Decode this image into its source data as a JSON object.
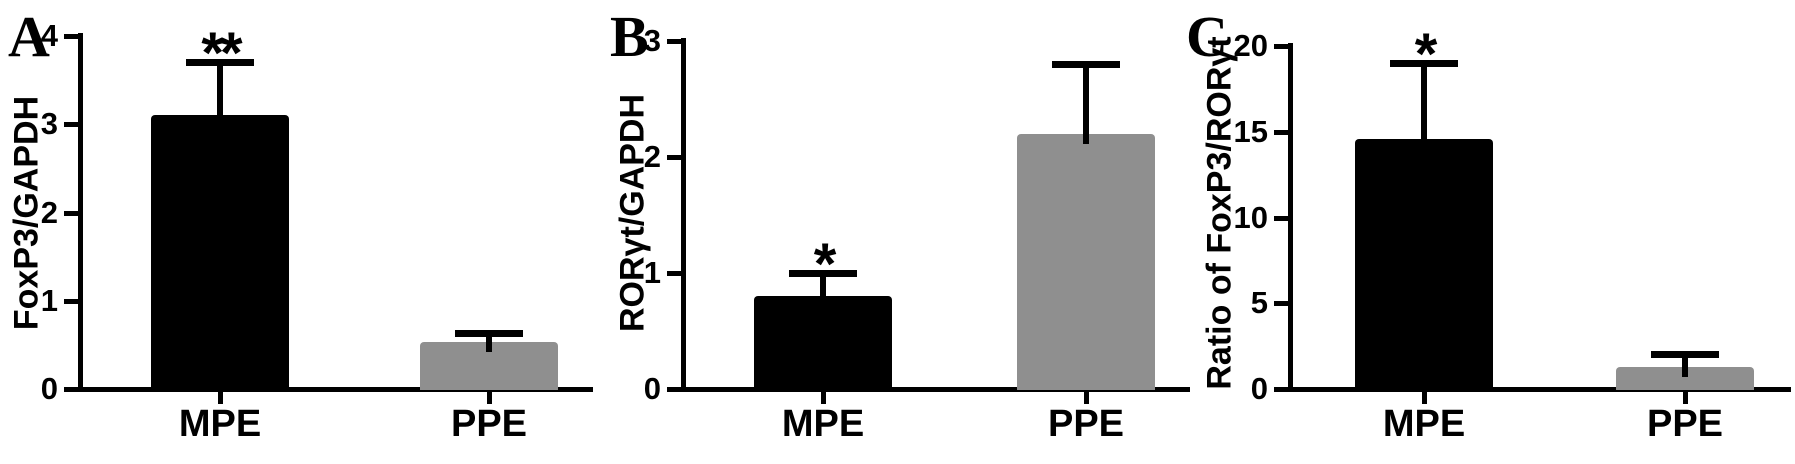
{
  "figure": {
    "background": "#ffffff",
    "colors": {
      "bar_black": "#000000",
      "bar_gray": "#8f8f8f",
      "axis": "#000000",
      "text": "#000000"
    }
  },
  "chart_data": [
    {
      "type": "bar",
      "panel_letter": "A",
      "ylabel": "FoxP3/GAPDH",
      "xlabel": "",
      "categories": [
        "MPE",
        "PPE"
      ],
      "values": [
        3.1,
        0.53
      ],
      "error_upper": [
        0.6,
        0.1
      ],
      "significance": [
        "**",
        ""
      ],
      "ylim": [
        0,
        4
      ],
      "yticks": [
        0,
        1,
        2,
        3,
        4
      ],
      "bar_colors": [
        "#000000",
        "#8f8f8f"
      ],
      "grid": false
    },
    {
      "type": "bar",
      "panel_letter": "B",
      "ylabel": "RORγt/GAPDH",
      "xlabel": "",
      "categories": [
        "MPE",
        "PPE"
      ],
      "values": [
        0.8,
        2.2
      ],
      "error_upper": [
        0.2,
        0.6
      ],
      "significance": [
        "*",
        ""
      ],
      "ylim": [
        0,
        3
      ],
      "yticks": [
        0,
        1,
        2,
        3
      ],
      "bar_colors": [
        "#000000",
        "#8f8f8f"
      ],
      "grid": false
    },
    {
      "type": "bar",
      "panel_letter": "C",
      "ylabel": "Ratio of FoxP3/RORγt",
      "xlabel": "",
      "categories": [
        "MPE",
        "PPE"
      ],
      "values": [
        14.6,
        1.3
      ],
      "error_upper": [
        4.4,
        0.75
      ],
      "significance": [
        "*",
        ""
      ],
      "ylim": [
        0,
        20
      ],
      "yticks": [
        0,
        5,
        10,
        15,
        20
      ],
      "bar_colors": [
        "#000000",
        "#8f8f8f"
      ],
      "grid": false
    }
  ]
}
